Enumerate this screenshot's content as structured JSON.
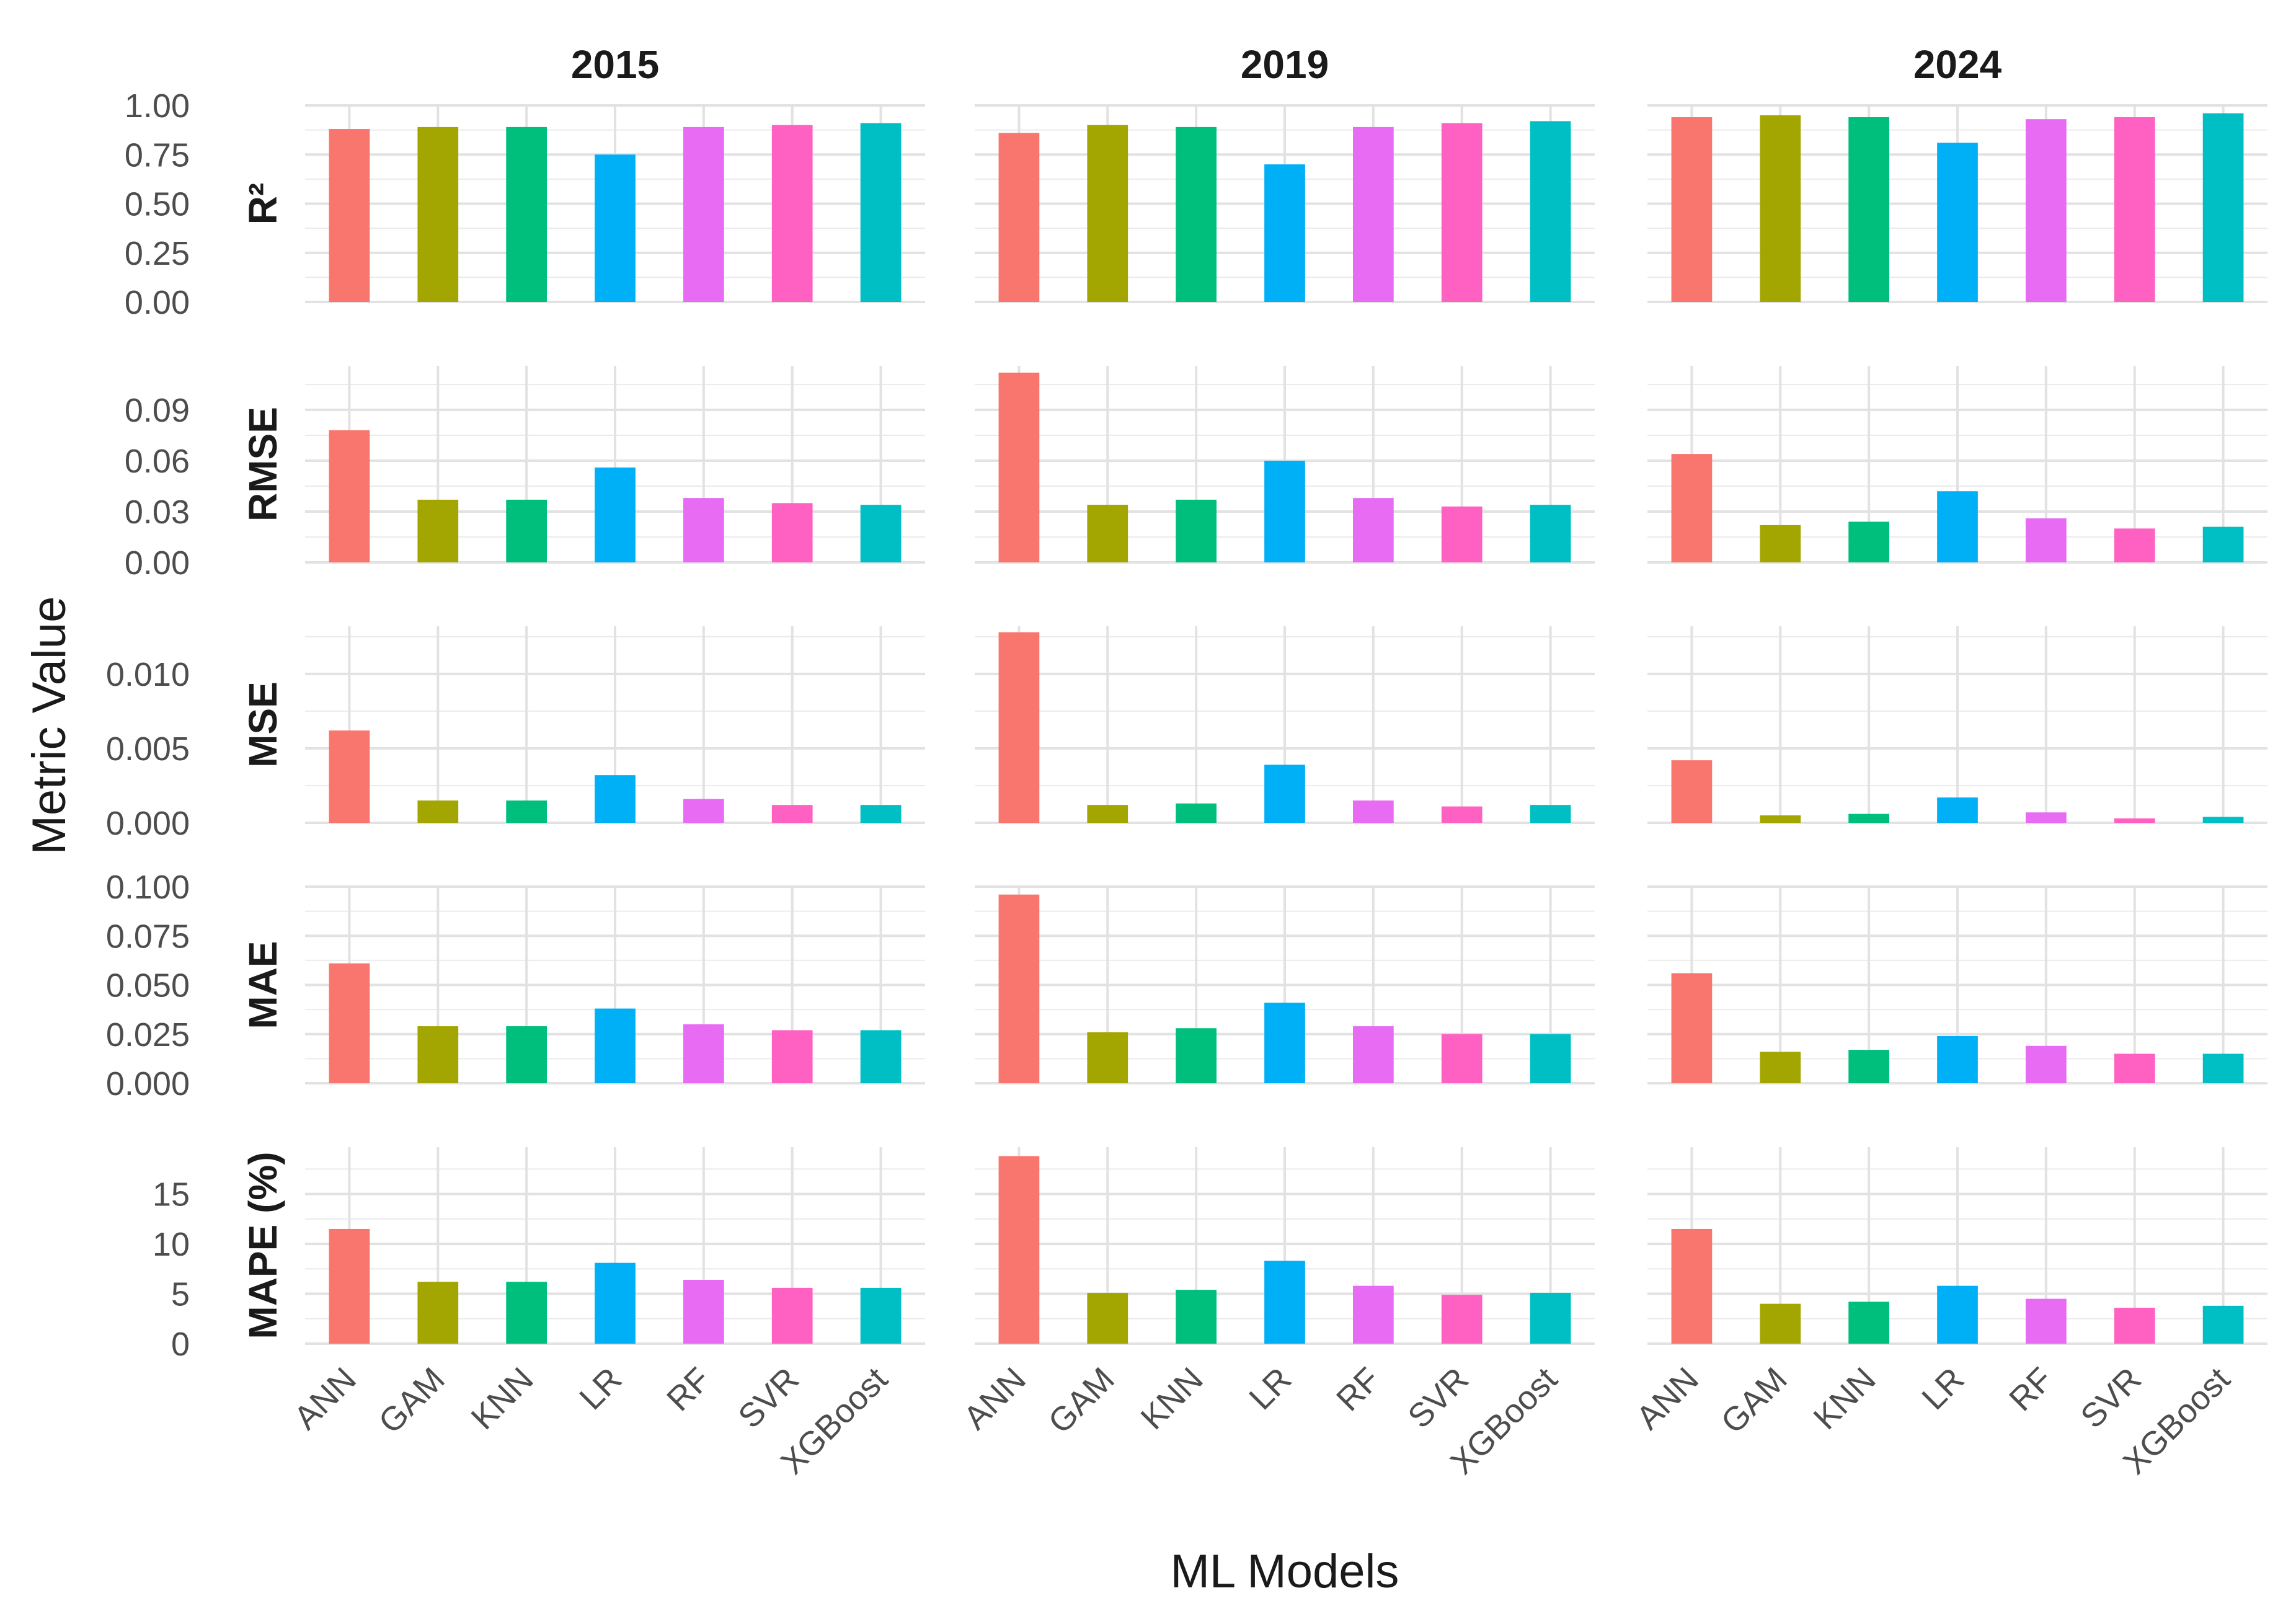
{
  "chart_data": {
    "type": "bar",
    "xlabel": "ML Models",
    "ylabel": "Metric Value",
    "categories": [
      "ANN",
      "GAM",
      "KNN",
      "LR",
      "RF",
      "SVR",
      "XGBoost"
    ],
    "colors": [
      "#F8766D",
      "#A3A500",
      "#00BF7D",
      "#00B0F6",
      "#E76BF3",
      "#FF61C3",
      "#00BFC4"
    ],
    "grid": true,
    "legend": "none",
    "years": [
      "2015",
      "2019",
      "2024"
    ],
    "metrics": [
      {
        "name": "R²",
        "ylim": [
          0,
          1.0
        ],
        "ticks": [
          "0.00",
          "0.25",
          "0.50",
          "0.75",
          "1.00"
        ],
        "tick_values": [
          0,
          0.25,
          0.5,
          0.75,
          1.0
        ],
        "values": {
          "2015": [
            0.88,
            0.89,
            0.89,
            0.75,
            0.89,
            0.9,
            0.91
          ],
          "2019": [
            0.86,
            0.9,
            0.89,
            0.7,
            0.89,
            0.91,
            0.92
          ],
          "2024": [
            0.94,
            0.95,
            0.94,
            0.81,
            0.93,
            0.94,
            0.96
          ]
        }
      },
      {
        "name": "RMSE",
        "ylim": [
          0,
          0.116
        ],
        "ticks": [
          "0.00",
          "0.03",
          "0.06",
          "0.09"
        ],
        "tick_values": [
          0,
          0.03,
          0.06,
          0.09
        ],
        "values": {
          "2015": [
            0.078,
            0.037,
            0.037,
            0.056,
            0.038,
            0.035,
            0.034
          ],
          "2019": [
            0.112,
            0.034,
            0.037,
            0.06,
            0.038,
            0.033,
            0.034
          ],
          "2024": [
            0.064,
            0.022,
            0.024,
            0.042,
            0.026,
            0.02,
            0.021
          ]
        }
      },
      {
        "name": "MSE",
        "ylim": [
          0,
          0.0132
        ],
        "ticks": [
          "0.000",
          "0.005",
          "0.010"
        ],
        "tick_values": [
          0,
          0.005,
          0.01
        ],
        "values": {
          "2015": [
            0.0062,
            0.0015,
            0.0015,
            0.0032,
            0.0016,
            0.0012,
            0.0012
          ],
          "2019": [
            0.0128,
            0.0012,
            0.0013,
            0.0039,
            0.0015,
            0.0011,
            0.0012
          ],
          "2024": [
            0.0042,
            0.0005,
            0.0006,
            0.0017,
            0.0007,
            0.0003,
            0.0004
          ]
        }
      },
      {
        "name": "MAE",
        "ylim": [
          0,
          0.1
        ],
        "ticks": [
          "0.000",
          "0.025",
          "0.050",
          "0.075",
          "0.100"
        ],
        "tick_values": [
          0,
          0.025,
          0.05,
          0.075,
          0.1
        ],
        "values": {
          "2015": [
            0.061,
            0.029,
            0.029,
            0.038,
            0.03,
            0.027,
            0.027
          ],
          "2019": [
            0.096,
            0.026,
            0.028,
            0.041,
            0.029,
            0.025,
            0.025
          ],
          "2024": [
            0.056,
            0.016,
            0.017,
            0.024,
            0.019,
            0.015,
            0.015
          ]
        }
      },
      {
        "name": "MAPE (%)",
        "ylim": [
          0,
          19.7
        ],
        "ticks": [
          "0",
          "5",
          "10",
          "15"
        ],
        "tick_values": [
          0,
          5,
          10,
          15
        ],
        "values": {
          "2015": [
            11.5,
            6.2,
            6.2,
            8.1,
            6.4,
            5.6,
            5.6
          ],
          "2019": [
            18.8,
            5.1,
            5.4,
            8.3,
            5.8,
            4.9,
            5.1
          ],
          "2024": [
            11.5,
            4.0,
            4.2,
            5.8,
            4.5,
            3.6,
            3.8
          ]
        }
      }
    ]
  }
}
